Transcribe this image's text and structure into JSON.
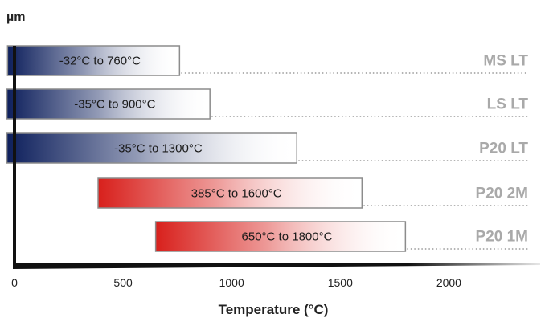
{
  "chart_data": {
    "type": "bar",
    "orientation": "horizontal-range",
    "ylabel": "µm",
    "xlabel": "Temperature (°C)",
    "xlim": [
      0,
      2300
    ],
    "xticks": [
      "0",
      "500",
      "1000",
      "1500",
      "2000"
    ],
    "grid": false,
    "series": [
      {
        "name": "MS LT",
        "range_label": "-32°C to 760°C",
        "start": -32,
        "end": 760,
        "color": "#0d1f5c"
      },
      {
        "name": "LS LT",
        "range_label": "-35°C to 900°C",
        "start": -35,
        "end": 900,
        "color": "#0d1f5c"
      },
      {
        "name": "P20 LT",
        "range_label": "-35°C to 1300°C",
        "start": -35,
        "end": 1300,
        "color": "#0d1f5c"
      },
      {
        "name": "P20 2M",
        "range_label": "385°C to 1600°C",
        "start": 385,
        "end": 1600,
        "color": "#d8201c"
      },
      {
        "name": "P20 1M",
        "range_label": "650°C to 1800°C",
        "start": 650,
        "end": 1800,
        "color": "#d8201c"
      }
    ]
  }
}
